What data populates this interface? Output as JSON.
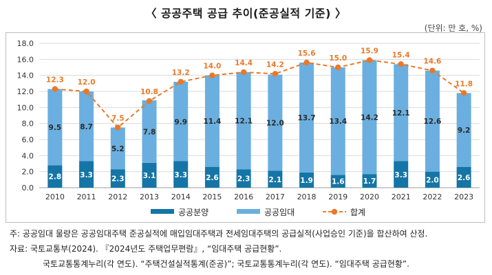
{
  "page": {
    "title": "〈 공공주택 공급 추이(준공실적 기준) 〉",
    "unit": "(단위: 만 호, %)",
    "notes": [
      "주: 공공임대 물량은 공공임대주택 준공실적에 매입임대주택과 전세임대주택의 공급실적(사업승인 기준)을 합산하여 산정.",
      "자료: 국토교통부(2024). 『2024년도 주택업무편람』, “임대주택 공급현황”.",
      "국토교통통계누리(각 연도). “주택건설실적통계(준공)”; 국토교통통계누리(각 연도). “임대주택 공급현황”."
    ]
  },
  "chart_data": {
    "type": "bar",
    "stacked": true,
    "categories": [
      "2010",
      "2011",
      "2012",
      "2013",
      "2014",
      "2015",
      "2016",
      "2017",
      "2018",
      "2019",
      "2020",
      "2021",
      "2022",
      "2023"
    ],
    "series": [
      {
        "name": "공공분양",
        "type": "bar",
        "color": "#1475a6",
        "values": [
          2.8,
          3.3,
          2.3,
          3.1,
          3.3,
          2.6,
          2.3,
          2.1,
          1.9,
          1.6,
          1.7,
          3.3,
          2.0,
          2.6
        ]
      },
      {
        "name": "공공임대",
        "type": "bar",
        "color": "#6aafdf",
        "values": [
          9.5,
          8.7,
          5.2,
          7.8,
          9.9,
          11.4,
          12.1,
          12.0,
          13.7,
          13.4,
          14.2,
          12.1,
          12.6,
          9.2
        ]
      },
      {
        "name": "합계",
        "type": "line",
        "color": "#e8792a",
        "values": [
          12.3,
          12.0,
          7.5,
          10.8,
          13.2,
          14.0,
          14.4,
          14.2,
          15.6,
          15.0,
          15.9,
          15.4,
          14.6,
          11.8
        ]
      }
    ],
    "ylim": [
      0,
      18
    ],
    "yticks": [
      "0.0",
      "2.0",
      "4.0",
      "6.0",
      "8.0",
      "10.0",
      "12.0",
      "14.0",
      "16.0",
      "18.0"
    ],
    "grid": true,
    "legend_position": "bottom"
  }
}
